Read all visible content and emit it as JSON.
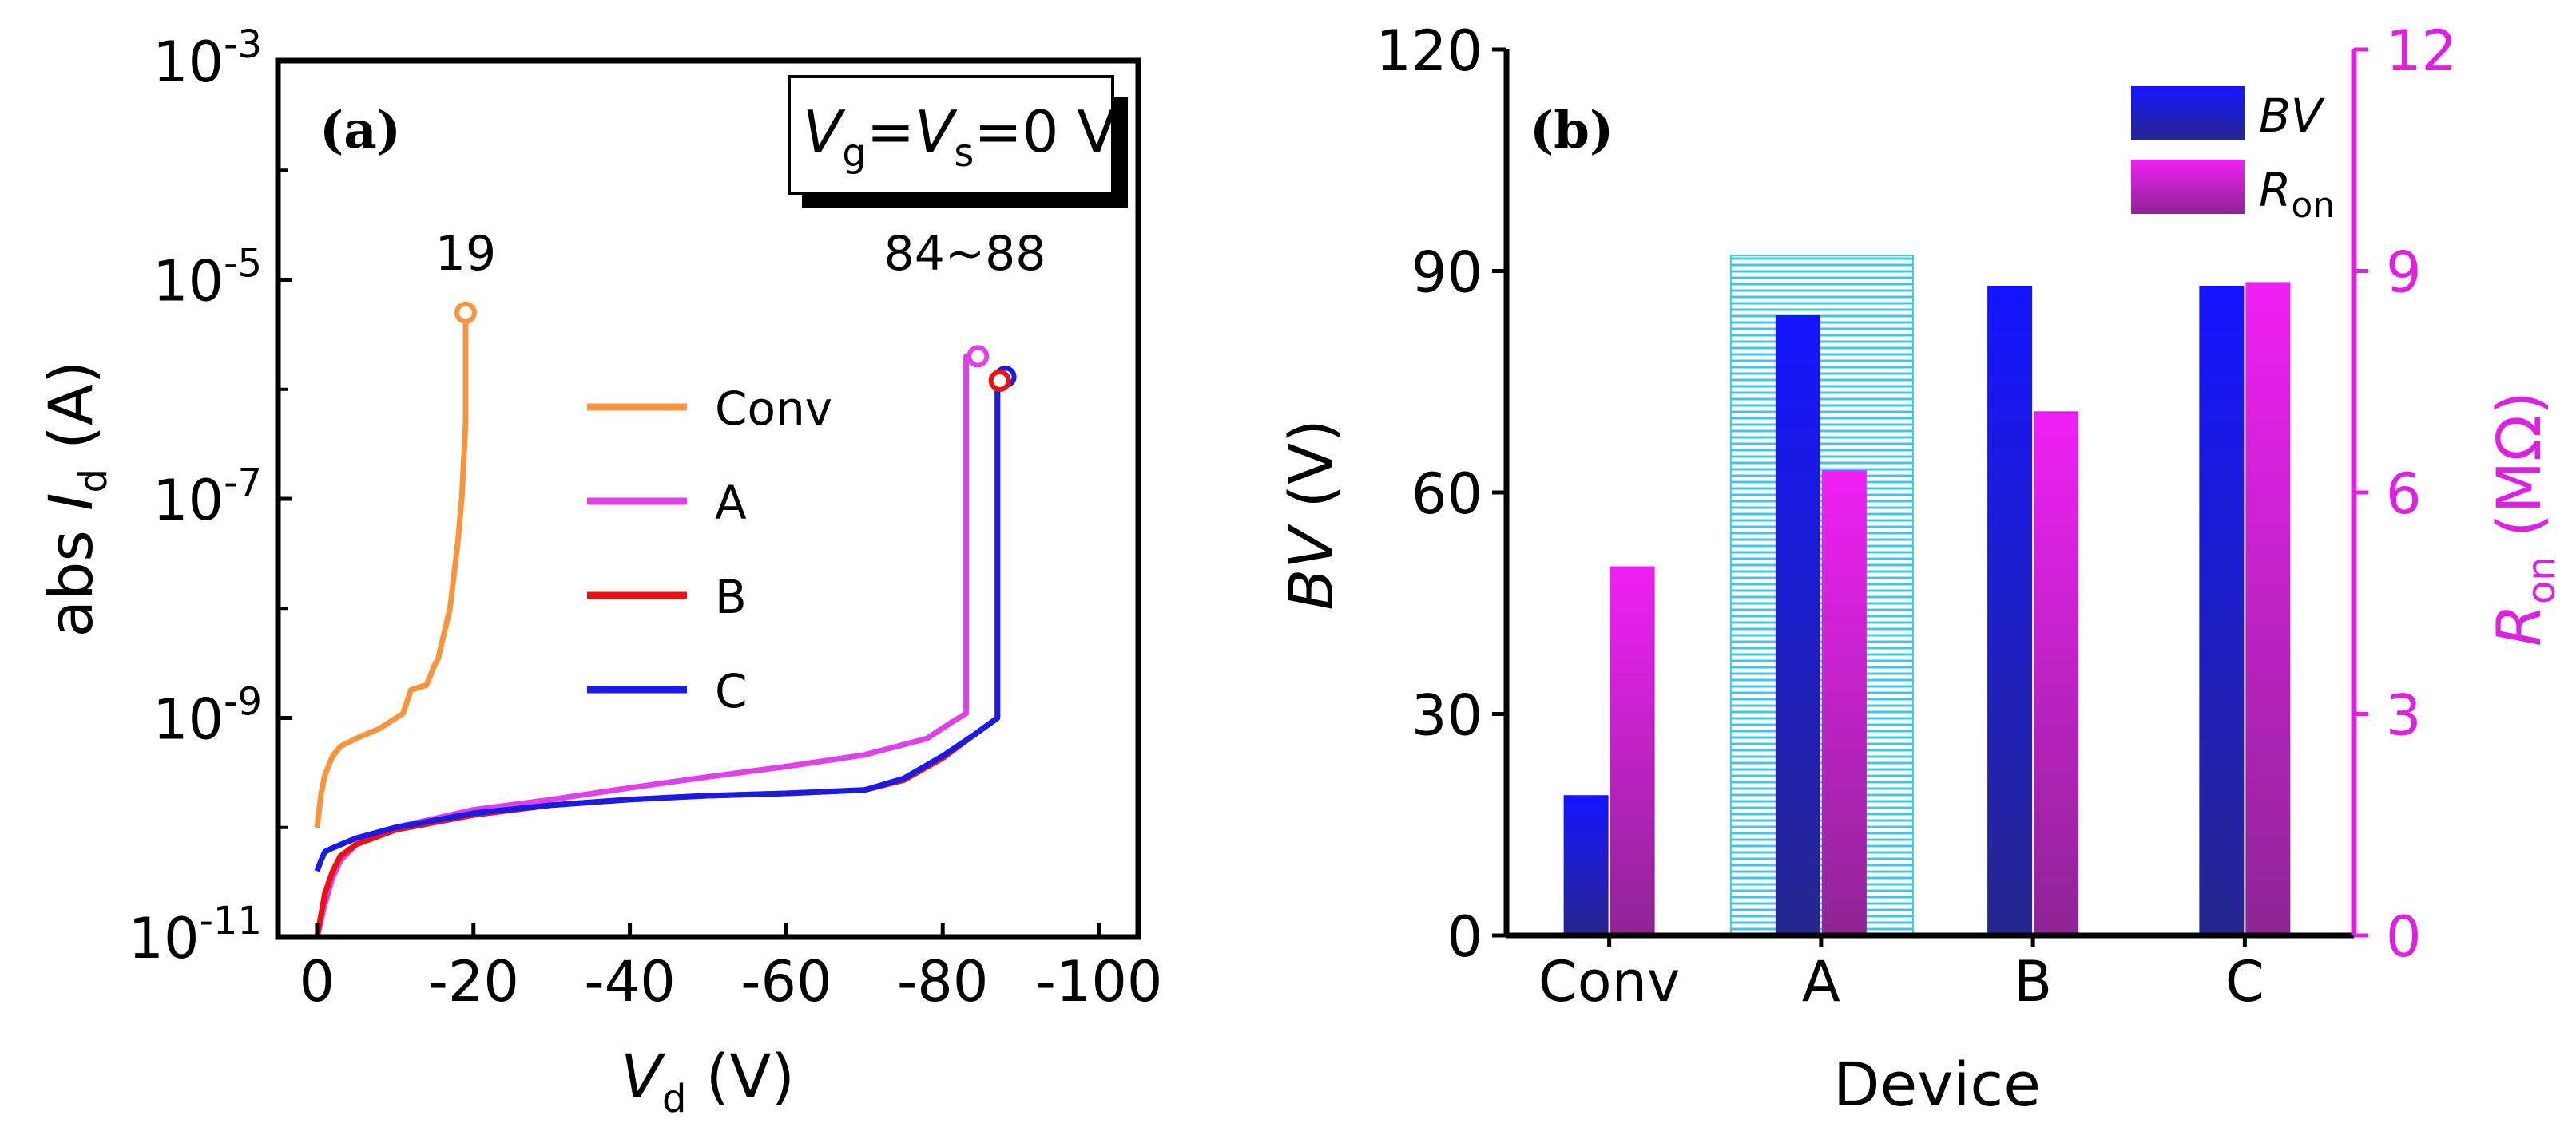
{
  "chart_data": [
    {
      "panel": "(a)",
      "type": "line",
      "xlabel": {
        "var": "V",
        "sub": "d",
        "unit": "(V)"
      },
      "ylabel": {
        "prefix": "abs",
        "var": "I",
        "sub": "d",
        "unit": "(A)"
      },
      "xlim": [
        5,
        -105
      ],
      "ylim": [
        1e-11,
        0.001
      ],
      "yscale": "log",
      "xticks": [
        {
          "value": 0,
          "label": "0"
        },
        {
          "value": -20,
          "label": "-20"
        },
        {
          "value": -40,
          "label": "-40"
        },
        {
          "value": -60,
          "label": "-60"
        },
        {
          "value": -80,
          "label": "-80"
        },
        {
          "value": -100,
          "label": "-100"
        }
      ],
      "yticks": [
        {
          "value": -11,
          "base": "10",
          "exp": "-11"
        },
        {
          "value": -9,
          "base": "10",
          "exp": "-9"
        },
        {
          "value": -7,
          "base": "10",
          "exp": "-7"
        },
        {
          "value": -5,
          "base": "10",
          "exp": "-5"
        },
        {
          "value": -3,
          "base": "10",
          "exp": "-3"
        }
      ],
      "condition": {
        "v1": "V",
        "s1": "g",
        "v2": "V",
        "s2": "s",
        "rest": "=0 V"
      },
      "annotations": [
        {
          "text": "19",
          "x": -19,
          "y": 5e-06
        },
        {
          "text": "84~88",
          "x": -86,
          "y": 5e-06
        }
      ],
      "legend_position": "center",
      "series": [
        {
          "name": "Conv",
          "color": "#f7943c",
          "x": [
            0,
            -0.5,
            -1,
            -2,
            -3,
            -5,
            -8,
            -11,
            -12,
            -14,
            -15,
            -15.5,
            -16,
            -17,
            -18,
            -18.5,
            -19,
            -19
          ],
          "y": [
            1e-10,
            2e-10,
            3e-10,
            4.5e-10,
            5.5e-10,
            6.5e-10,
            8e-10,
            1.1e-09,
            1.8e-09,
            2e-09,
            3e-09,
            3.5e-09,
            5e-09,
            1e-08,
            4e-08,
            1e-07,
            5e-07,
            5e-06
          ]
        },
        {
          "name": "A",
          "color": "#e040e8",
          "x": [
            0,
            -1,
            -2,
            -3,
            -5,
            -10,
            -20,
            -30,
            -40,
            -50,
            -60,
            -70,
            -78,
            -81,
            -83,
            -83,
            -84.5
          ],
          "y": [
            1e-11,
            2e-11,
            3.5e-11,
            5e-11,
            7e-11,
            1e-10,
            1.45e-10,
            1.8e-10,
            2.3e-10,
            2.9e-10,
            3.6e-10,
            4.6e-10,
            6.5e-10,
            9e-10,
            1.1e-09,
            2e-06,
            2e-06
          ]
        },
        {
          "name": "B",
          "color": "#ee1111",
          "x": [
            0,
            -1,
            -2,
            -3,
            -5,
            -10,
            -20,
            -30,
            -40,
            -50,
            -60,
            -70,
            -75,
            -80,
            -84,
            -87,
            -87
          ],
          "y": [
            1e-11,
            2.5e-11,
            4e-11,
            5.5e-11,
            7e-11,
            9.5e-11,
            1.3e-10,
            1.6e-10,
            1.8e-10,
            1.95e-10,
            2.05e-10,
            2.2e-10,
            2.7e-10,
            4.3e-10,
            7e-10,
            1e-09,
            1.2e-06
          ]
        },
        {
          "name": "C",
          "color": "#1a1ae6",
          "x": [
            0,
            -0.5,
            -1,
            -2,
            -5,
            -10,
            -20,
            -30,
            -40,
            -50,
            -60,
            -70,
            -75,
            -80,
            -84,
            -87,
            -87,
            -88
          ],
          "y": [
            4e-11,
            5e-11,
            6e-11,
            6.5e-11,
            8e-11,
            1e-10,
            1.35e-10,
            1.6e-10,
            1.8e-10,
            1.95e-10,
            2.05e-10,
            2.2e-10,
            2.8e-10,
            4.5e-10,
            7e-10,
            1e-09,
            1.3e-06,
            1.3e-06
          ]
        }
      ]
    },
    {
      "panel": "(b)",
      "type": "bar",
      "xlabel": "Device",
      "categories": [
        "Conv",
        "A",
        "B",
        "C"
      ],
      "highlight_category": "A",
      "highlight_color": "#3cc8e8",
      "ylabel_left": {
        "var": "BV",
        "unit": "(V)"
      },
      "ylabel_right": {
        "var": "R",
        "sub": "on",
        "unit": "(MΩ)"
      },
      "ylim_left": [
        0,
        120
      ],
      "ylim_right": [
        0,
        12
      ],
      "yticks_left": [
        0,
        30,
        60,
        90,
        120
      ],
      "yticks_right": [
        0,
        3,
        6,
        9,
        12
      ],
      "right_axis_color": "#e020e0",
      "legend_position": "top-right",
      "series": [
        {
          "name": "BV",
          "axis": "left",
          "color_top": "#1414ff",
          "color_bottom": "#26268e",
          "values": [
            19,
            84,
            88,
            88
          ]
        },
        {
          "name": "R",
          "name_sub": "on",
          "axis": "right",
          "color_top": "#f020f5",
          "color_bottom": "#8e2495",
          "values": [
            5.0,
            6.3,
            7.1,
            8.85
          ]
        }
      ]
    }
  ]
}
